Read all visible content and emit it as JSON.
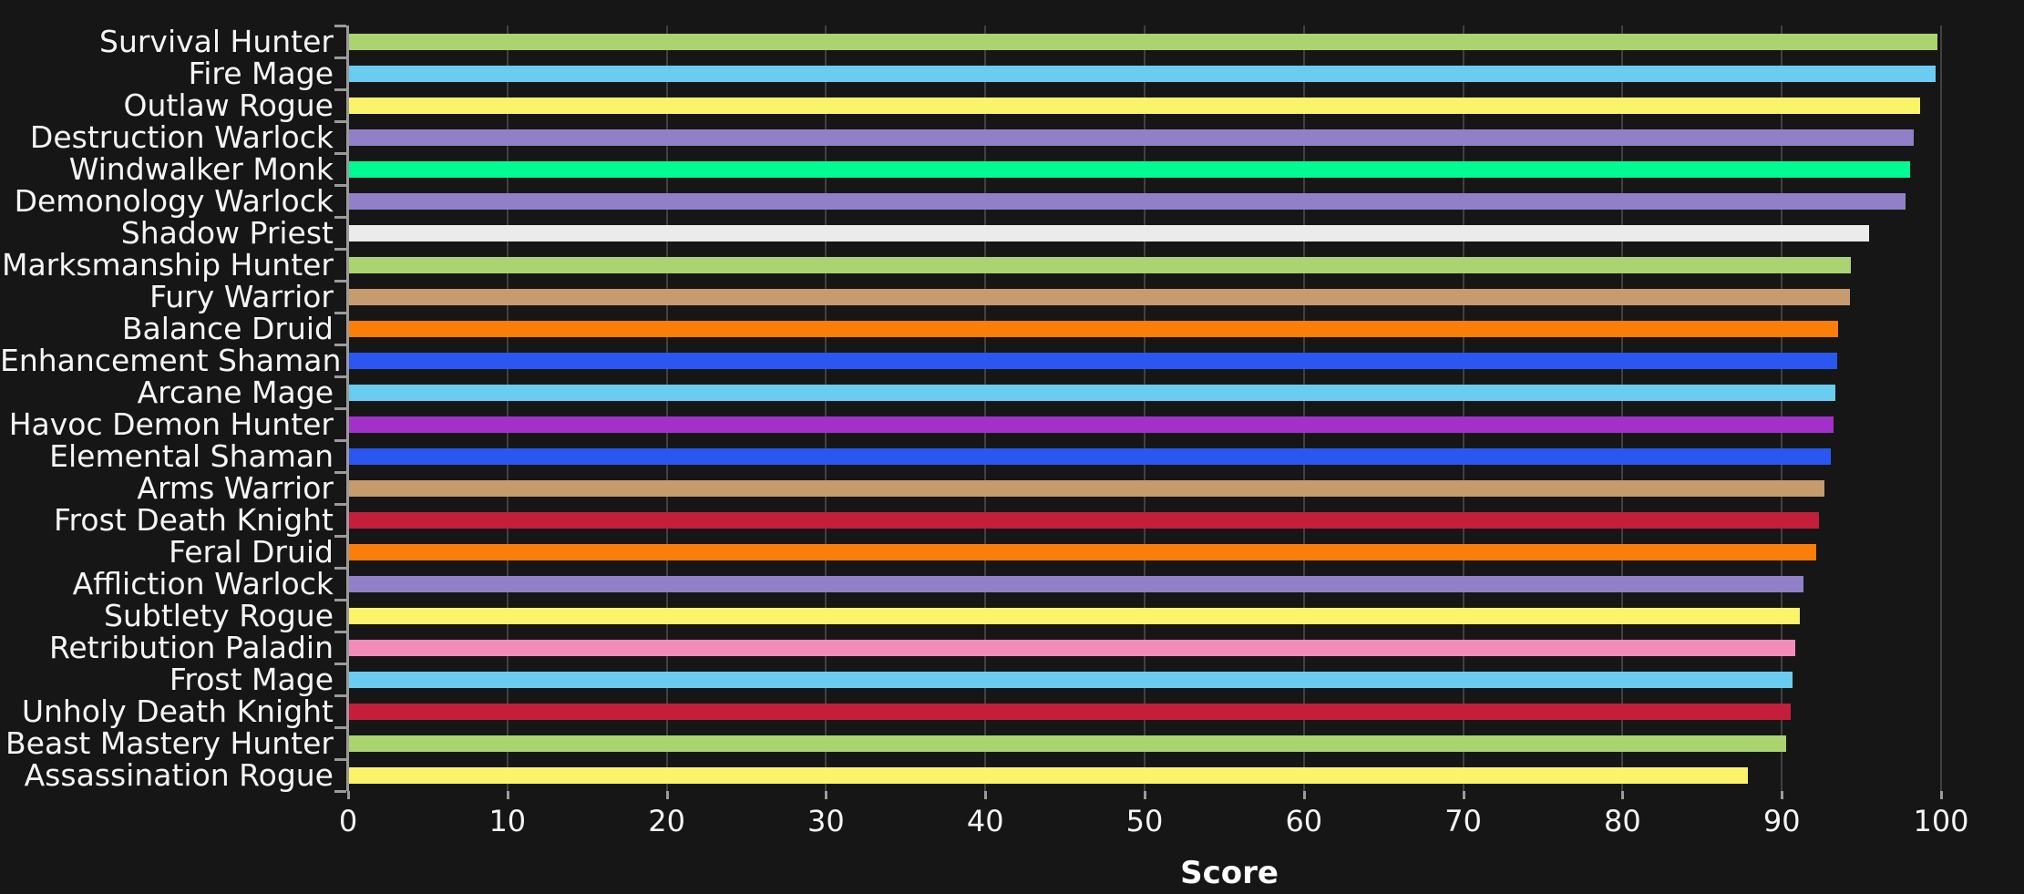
{
  "chart_data": {
    "type": "bar",
    "orientation": "horizontal",
    "title": "",
    "xlabel": "Score",
    "xlim": [
      0,
      105
    ],
    "grid": "vertical gridlines at every x tick, behind bars",
    "legend": "none",
    "background_color": "#161616",
    "gridline_color": "#414141",
    "axis_color": "#9b9b9b",
    "text_color": "#f5f5f5",
    "xticks": [
      "0",
      "10",
      "20",
      "30",
      "40",
      "50",
      "60",
      "70",
      "80",
      "90",
      "100"
    ],
    "xtick_values": [
      0,
      10,
      20,
      30,
      40,
      50,
      60,
      70,
      80,
      90,
      100
    ],
    "items": [
      {
        "label": "Survival Hunter",
        "value": 99.7,
        "color": "#a9d46f"
      },
      {
        "label": "Fire Mage",
        "value": 99.6,
        "color": "#69ccf0"
      },
      {
        "label": "Outlaw Rogue",
        "value": 98.6,
        "color": "#fbf469"
      },
      {
        "label": "Destruction Warlock",
        "value": 98.2,
        "color": "#9180c8"
      },
      {
        "label": "Windwalker Monk",
        "value": 98.0,
        "color": "#00fb92"
      },
      {
        "label": "Demonology Warlock",
        "value": 97.7,
        "color": "#9180c8"
      },
      {
        "label": "Shadow Priest",
        "value": 95.4,
        "color": "#ebebeb"
      },
      {
        "label": "Marksmanship Hunter",
        "value": 94.3,
        "color": "#a9d46f"
      },
      {
        "label": "Fury Warrior",
        "value": 94.2,
        "color": "#c69b6d"
      },
      {
        "label": "Balance Druid",
        "value": 93.5,
        "color": "#fb7d0a"
      },
      {
        "label": "Enhancement Shaman",
        "value": 93.4,
        "color": "#2a57f2"
      },
      {
        "label": "Arcane Mage",
        "value": 93.3,
        "color": "#69ccf0"
      },
      {
        "label": "Havoc Demon Hunter",
        "value": 93.2,
        "color": "#a330c9"
      },
      {
        "label": "Elemental Shaman",
        "value": 93.0,
        "color": "#2a57f2"
      },
      {
        "label": "Arms Warrior",
        "value": 92.6,
        "color": "#c69b6d"
      },
      {
        "label": "Frost Death Knight",
        "value": 92.3,
        "color": "#c41e3b"
      },
      {
        "label": "Feral Druid",
        "value": 92.1,
        "color": "#fb7d0a"
      },
      {
        "label": "Affliction Warlock",
        "value": 91.3,
        "color": "#9180c8"
      },
      {
        "label": "Subtlety Rogue",
        "value": 91.1,
        "color": "#fbf469"
      },
      {
        "label": "Retribution Paladin",
        "value": 90.8,
        "color": "#f48cba"
      },
      {
        "label": "Frost Mage",
        "value": 90.6,
        "color": "#69ccf0"
      },
      {
        "label": "Unholy Death Knight",
        "value": 90.5,
        "color": "#c41e3b"
      },
      {
        "label": "Beast Mastery Hunter",
        "value": 90.2,
        "color": "#a9d46f"
      },
      {
        "label": "Assassination Rogue",
        "value": 87.8,
        "color": "#fbf469"
      }
    ]
  }
}
